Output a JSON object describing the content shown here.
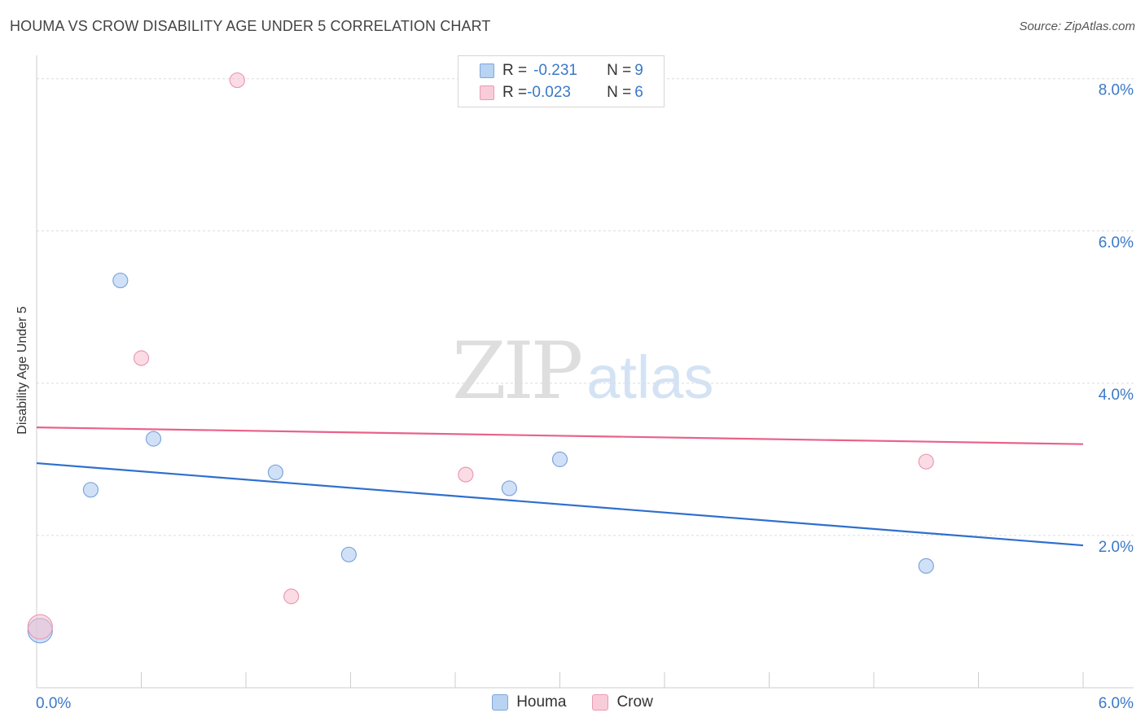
{
  "chart_data": {
    "type": "scatter",
    "title": "HOUMA VS CROW DISABILITY AGE UNDER 5 CORRELATION CHART",
    "source": "Source: ZipAtlas.com",
    "xlabel": "",
    "ylabel": "Disability Age Under 5",
    "xlim": [
      0,
      6
    ],
    "ylim": [
      0,
      8.2
    ],
    "x_tick_labels": [
      "0.0%",
      "6.0%"
    ],
    "y_tick_labels": [
      "2.0%",
      "4.0%",
      "6.0%",
      "8.0%"
    ],
    "y_tick_values": [
      2,
      4,
      6,
      8
    ],
    "series": [
      {
        "name": "Houma",
        "color": "#a9c8f0",
        "stroke": "#7ea6dc",
        "line_color": "#2f6fcf",
        "R": "-0.231",
        "N": "9",
        "points": [
          {
            "x": 0.02,
            "y": 0.75,
            "big": true
          },
          {
            "x": 0.31,
            "y": 2.6
          },
          {
            "x": 0.48,
            "y": 5.35
          },
          {
            "x": 0.67,
            "y": 3.27
          },
          {
            "x": 1.37,
            "y": 2.83
          },
          {
            "x": 1.79,
            "y": 1.75
          },
          {
            "x": 2.71,
            "y": 2.62
          },
          {
            "x": 3.0,
            "y": 3.0
          },
          {
            "x": 5.1,
            "y": 1.6
          }
        ],
        "trend": {
          "x0": 0,
          "y0": 2.95,
          "x1": 6,
          "y1": 1.87
        }
      },
      {
        "name": "Crow",
        "color": "#f7bfd0",
        "stroke": "#eb9ab2",
        "line_color": "#e8628a",
        "R": "-0.023",
        "N": "6",
        "points": [
          {
            "x": 0.02,
            "y": 0.8,
            "big": true
          },
          {
            "x": 0.6,
            "y": 4.33
          },
          {
            "x": 1.15,
            "y": 7.98
          },
          {
            "x": 1.46,
            "y": 1.2
          },
          {
            "x": 2.46,
            "y": 2.8
          },
          {
            "x": 5.1,
            "y": 2.97
          }
        ],
        "trend": {
          "x0": 0,
          "y0": 3.42,
          "x1": 6,
          "y1": 3.2
        }
      }
    ]
  },
  "legend": {
    "houma": {
      "r_label": "R = ",
      "r_value": "-0.231",
      "n_label": "N = ",
      "n_value": "9"
    },
    "crow": {
      "r_label": "R = ",
      "r_value": "-0.023",
      "n_label": "N = ",
      "n_value": "6"
    }
  },
  "bottom_legend": {
    "houma": "Houma",
    "crow": "Crow"
  },
  "watermark": {
    "zip": "ZIP",
    "atlas": "atlas"
  }
}
